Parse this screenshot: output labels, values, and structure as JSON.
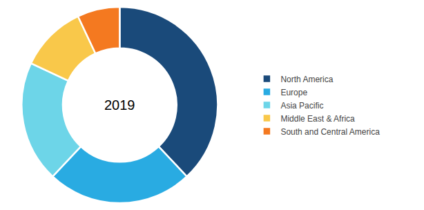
{
  "chart_data": {
    "type": "donut",
    "categories": [
      "North America",
      "Europe",
      "Asia Pacific",
      "Middle East & Africa",
      "South and Central America"
    ],
    "values": [
      38,
      24,
      20,
      11,
      7
    ],
    "colors": [
      "#1a4a7a",
      "#29abe2",
      "#6dd5e8",
      "#f9c84a",
      "#f47920"
    ],
    "annotations": [
      "2019"
    ],
    "legend": "right"
  }
}
